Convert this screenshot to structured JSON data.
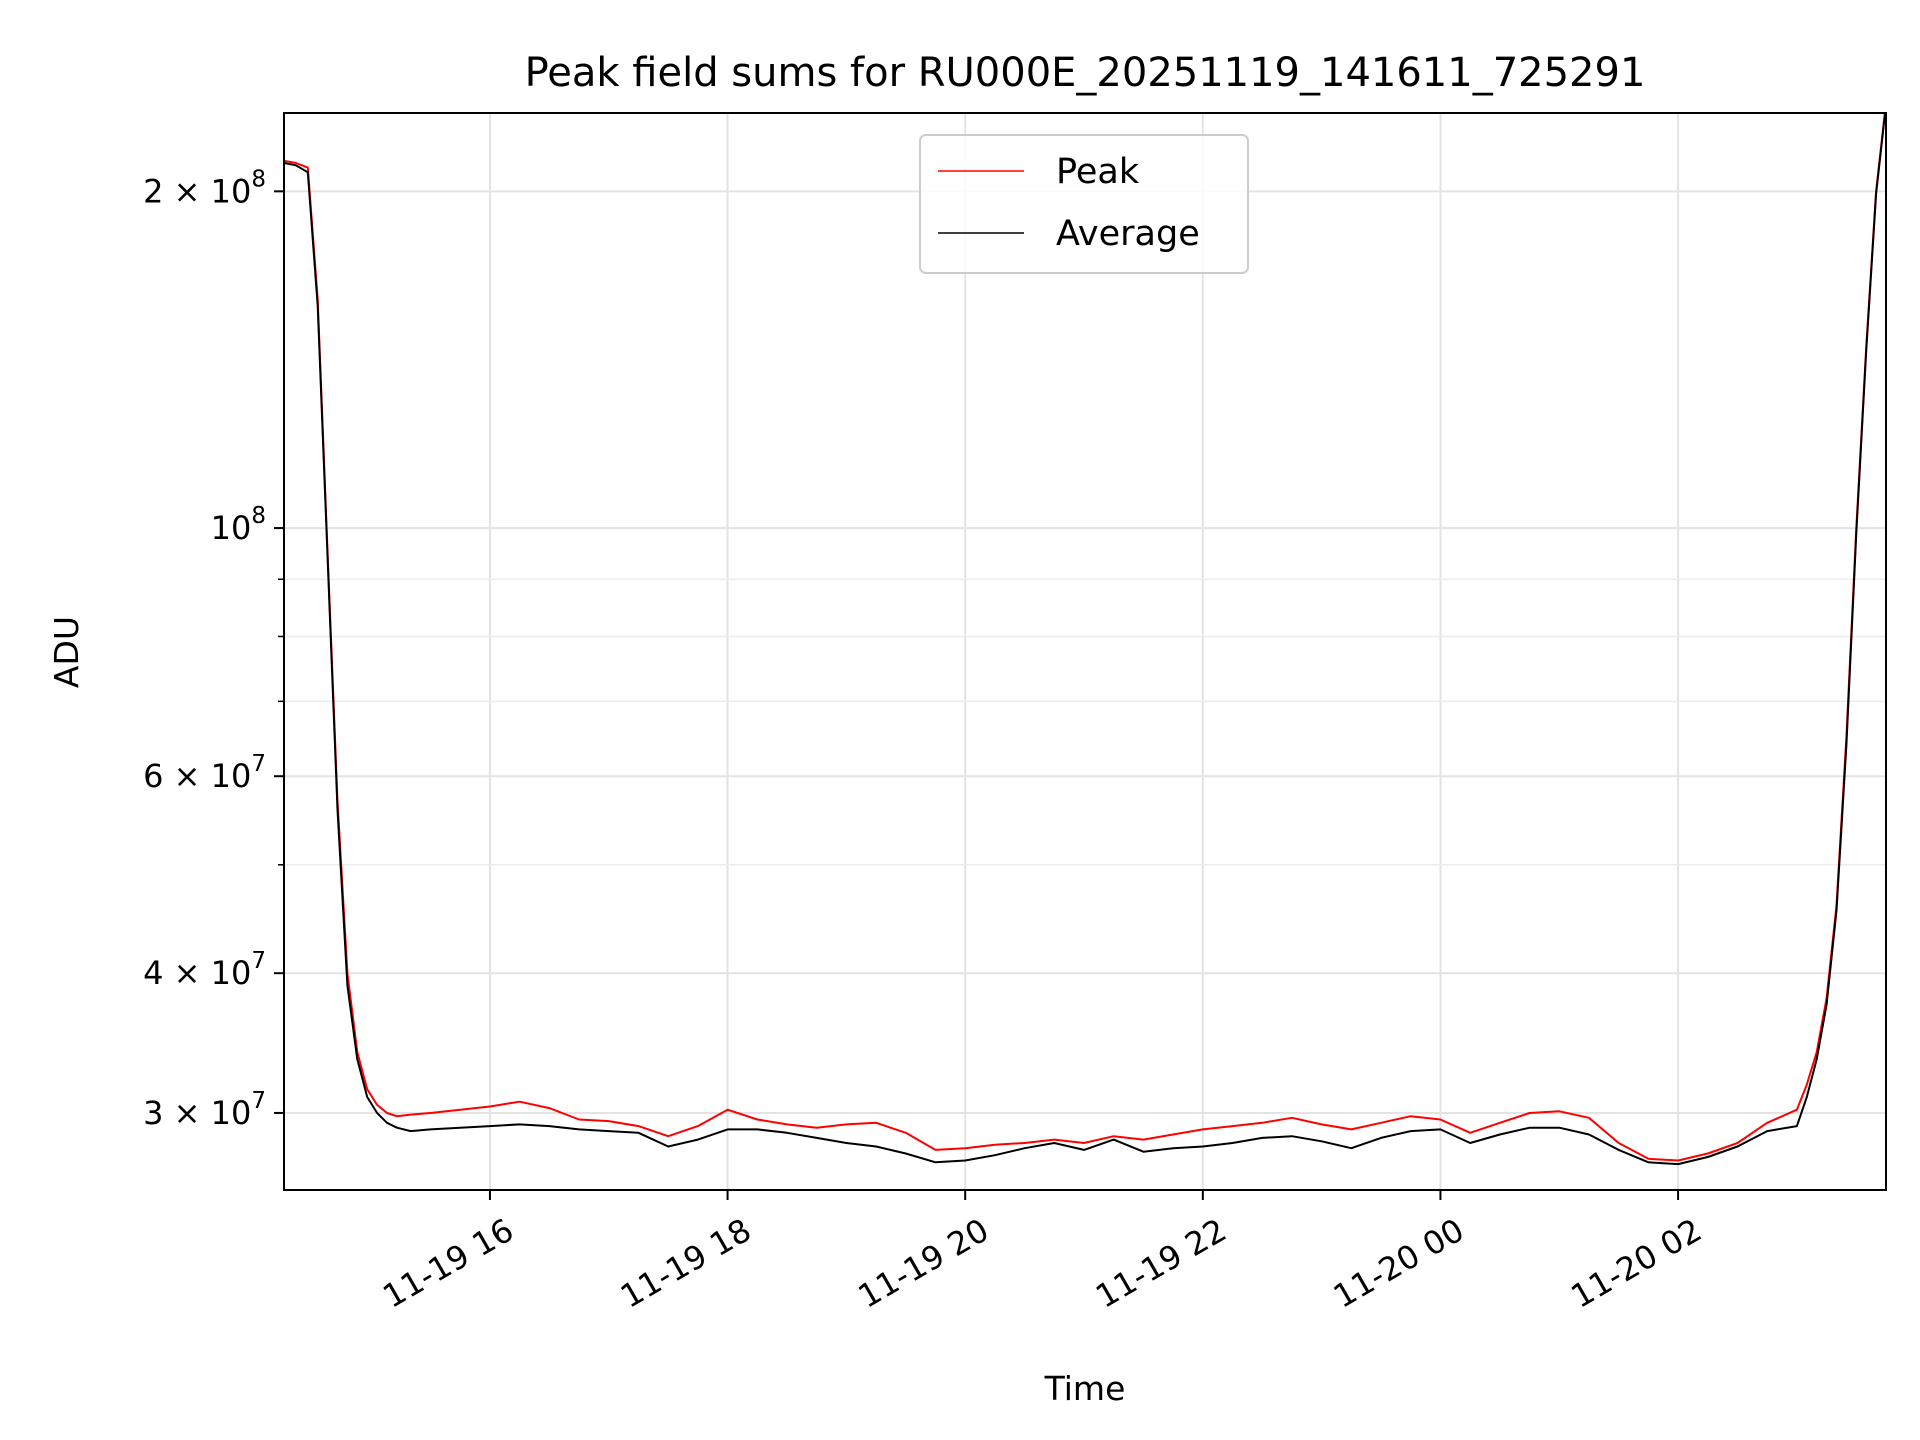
{
  "chart_data": {
    "type": "line",
    "title": "Peak field sums for RU000E_20251119_141611_725291",
    "xlabel": "Time",
    "ylabel": "ADU",
    "x_range": [
      "2025-11-19 14:16",
      "2025-11-20 03:45"
    ],
    "y_scale": "log",
    "ylim": [
      25600000,
      235000000
    ],
    "grid": true,
    "legend_position": "top-center",
    "x_ticks": [
      {
        "value": "2025-11-19 16:00",
        "label": "11-19 16"
      },
      {
        "value": "2025-11-19 18:00",
        "label": "11-19 18"
      },
      {
        "value": "2025-11-19 20:00",
        "label": "11-19 20"
      },
      {
        "value": "2025-11-19 22:00",
        "label": "11-19 22"
      },
      {
        "value": "2025-11-20 00:00",
        "label": "11-20 00"
      },
      {
        "value": "2025-11-20 02:00",
        "label": "11-20 02"
      }
    ],
    "y_ticks": [
      {
        "value": 200000000,
        "base": "2 × 10",
        "exp": "8"
      },
      {
        "value": 100000000,
        "base": "10",
        "exp": "8"
      },
      {
        "value": 60000000,
        "base": "6 × 10",
        "exp": "7"
      },
      {
        "value": 40000000,
        "base": "4 × 10",
        "exp": "7"
      },
      {
        "value": 30000000,
        "base": "3 × 10",
        "exp": "7"
      }
    ],
    "y_minor_ticks": [
      90000000,
      80000000,
      70000000,
      50000000
    ],
    "x": [
      "2025-11-19 14:16",
      "2025-11-19 14:22",
      "2025-11-19 14:28",
      "2025-11-19 14:33",
      "2025-11-19 14:38",
      "2025-11-19 14:43",
      "2025-11-19 14:48",
      "2025-11-19 14:53",
      "2025-11-19 14:58",
      "2025-11-19 15:03",
      "2025-11-19 15:08",
      "2025-11-19 15:13",
      "2025-11-19 15:20",
      "2025-11-19 15:30",
      "2025-11-19 15:45",
      "2025-11-19 16:00",
      "2025-11-19 16:15",
      "2025-11-19 16:30",
      "2025-11-19 16:45",
      "2025-11-19 17:00",
      "2025-11-19 17:15",
      "2025-11-19 17:30",
      "2025-11-19 17:45",
      "2025-11-19 18:00",
      "2025-11-19 18:15",
      "2025-11-19 18:30",
      "2025-11-19 18:45",
      "2025-11-19 19:00",
      "2025-11-19 19:15",
      "2025-11-19 19:30",
      "2025-11-19 19:45",
      "2025-11-19 20:00",
      "2025-11-19 20:15",
      "2025-11-19 20:30",
      "2025-11-19 20:45",
      "2025-11-19 21:00",
      "2025-11-19 21:15",
      "2025-11-19 21:30",
      "2025-11-19 21:45",
      "2025-11-19 22:00",
      "2025-11-19 22:15",
      "2025-11-19 22:30",
      "2025-11-19 22:45",
      "2025-11-19 23:00",
      "2025-11-19 23:15",
      "2025-11-19 23:30",
      "2025-11-19 23:45",
      "2025-11-20 00:00",
      "2025-11-20 00:15",
      "2025-11-20 00:30",
      "2025-11-20 00:45",
      "2025-11-20 01:00",
      "2025-11-20 01:15",
      "2025-11-20 01:30",
      "2025-11-20 01:45",
      "2025-11-20 02:00",
      "2025-11-20 02:15",
      "2025-11-20 02:30",
      "2025-11-20 02:45",
      "2025-11-20 03:00",
      "2025-11-20 03:05",
      "2025-11-20 03:10",
      "2025-11-20 03:15",
      "2025-11-20 03:20",
      "2025-11-20 03:25",
      "2025-11-20 03:30",
      "2025-11-20 03:35",
      "2025-11-20 03:40",
      "2025-11-20 03:45"
    ],
    "series": [
      {
        "name": "Peak",
        "color": "#ff0000",
        "values": [
          213000000,
          212000000,
          210000000,
          160000000,
          95000000,
          57000000,
          40000000,
          34000000,
          31500000,
          30500000,
          30000000,
          29800000,
          29900000,
          30000000,
          30200000,
          30400000,
          30700000,
          30300000,
          29600000,
          29500000,
          29200000,
          28600000,
          29200000,
          30200000,
          29600000,
          29300000,
          29100000,
          29300000,
          29400000,
          28800000,
          27800000,
          27900000,
          28100000,
          28200000,
          28400000,
          28200000,
          28600000,
          28400000,
          28700000,
          29000000,
          29200000,
          29400000,
          29700000,
          29300000,
          29000000,
          29400000,
          29800000,
          29600000,
          28800000,
          29400000,
          30000000,
          30100000,
          29700000,
          28200000,
          27300000,
          27200000,
          27600000,
          28200000,
          29400000,
          30200000,
          31800000,
          34000000,
          38000000,
          46000000,
          65000000,
          100000000,
          145000000,
          200000000,
          240000000
        ]
      },
      {
        "name": "Average",
        "color": "#000000",
        "values": [
          212000000,
          211000000,
          208000000,
          158000000,
          94000000,
          56000000,
          39000000,
          33500000,
          31000000,
          30000000,
          29400000,
          29100000,
          28900000,
          29000000,
          29100000,
          29200000,
          29300000,
          29200000,
          29000000,
          28900000,
          28800000,
          28000000,
          28400000,
          29000000,
          29000000,
          28800000,
          28500000,
          28200000,
          28000000,
          27600000,
          27100000,
          27200000,
          27500000,
          27900000,
          28200000,
          27800000,
          28400000,
          27700000,
          27900000,
          28000000,
          28200000,
          28500000,
          28600000,
          28300000,
          27900000,
          28500000,
          28900000,
          29000000,
          28200000,
          28700000,
          29100000,
          29100000,
          28700000,
          27800000,
          27100000,
          27000000,
          27400000,
          28000000,
          28900000,
          29200000,
          31000000,
          33500000,
          37500000,
          45500000,
          64000000,
          99000000,
          144000000,
          199000000,
          239000000
        ]
      }
    ]
  }
}
